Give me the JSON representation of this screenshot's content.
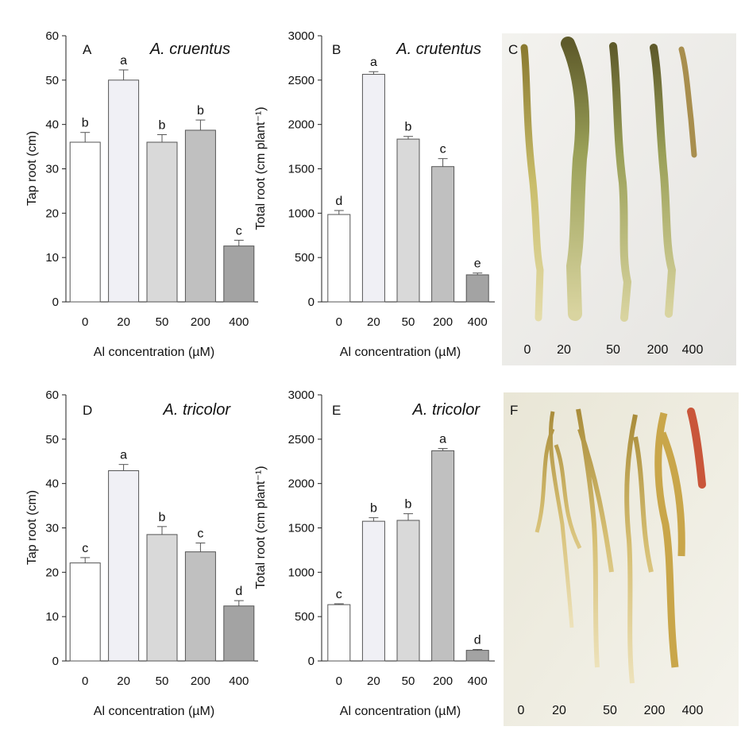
{
  "chart_data": [
    {
      "type": "bar",
      "panel": "A",
      "species": "A. cruentus",
      "categories": [
        "0",
        "20",
        "50",
        "200",
        "400"
      ],
      "values": [
        36,
        50,
        36,
        38.7,
        12.6
      ],
      "errors": [
        2.2,
        2.3,
        1.7,
        2.3,
        1.3
      ],
      "letters": [
        "b",
        "a",
        "b",
        "b",
        "c"
      ],
      "colors": [
        "#ffffff",
        "#f0f0f5",
        "#d9d9d9",
        "#c0c0c0",
        "#a3a3a3"
      ],
      "ylabel": "Tap root (cm)",
      "xlabel": "Al concentration (µM)",
      "ylim": [
        0,
        60
      ],
      "yticks": [
        "0",
        "10",
        "20",
        "30",
        "40",
        "50",
        "60"
      ]
    },
    {
      "type": "bar",
      "panel": "B",
      "species": "A. crutentus",
      "categories": [
        "0",
        "20",
        "50",
        "200",
        "400"
      ],
      "values": [
        985,
        2565,
        1835,
        1525,
        305
      ],
      "errors": [
        45,
        30,
        30,
        90,
        20
      ],
      "letters": [
        "d",
        "a",
        "b",
        "c",
        "e"
      ],
      "colors": [
        "#ffffff",
        "#f0f0f5",
        "#d9d9d9",
        "#c0c0c0",
        "#a3a3a3"
      ],
      "ylabel": "Total root (cm plant⁻¹)",
      "xlabel": "Al concentration (µM)",
      "ylim": [
        0,
        3000
      ],
      "yticks": [
        "0",
        "500",
        "1000",
        "1500",
        "2000",
        "2500",
        "3000"
      ]
    },
    {
      "type": "bar",
      "panel": "D",
      "species": "A. tricolor",
      "categories": [
        "0",
        "20",
        "50",
        "200",
        "400"
      ],
      "values": [
        22.1,
        42.9,
        28.5,
        24.6,
        12.4
      ],
      "errors": [
        1.2,
        1.4,
        1.8,
        2.0,
        1.2
      ],
      "letters": [
        "c",
        "a",
        "b",
        "c",
        "d"
      ],
      "colors": [
        "#ffffff",
        "#f0f0f5",
        "#d9d9d9",
        "#c0c0c0",
        "#a3a3a3"
      ],
      "ylabel": "Tap root (cm)",
      "xlabel": "Al concentration (µM)",
      "ylim": [
        0,
        60
      ],
      "yticks": [
        "0",
        "10",
        "20",
        "30",
        "40",
        "50",
        "60"
      ]
    },
    {
      "type": "bar",
      "panel": "E",
      "species": "A. tricolor",
      "categories": [
        "0",
        "20",
        "50",
        "200",
        "400"
      ],
      "values": [
        635,
        1575,
        1585,
        2370,
        120
      ],
      "errors": [
        10,
        40,
        75,
        25,
        10
      ],
      "letters": [
        "c",
        "b",
        "b",
        "a",
        "d"
      ],
      "colors": [
        "#ffffff",
        "#f0f0f5",
        "#d9d9d9",
        "#c0c0c0",
        "#a3a3a3"
      ],
      "ylabel": "Total root (cm plant⁻¹)",
      "xlabel": "Al concentration (µM)",
      "ylim": [
        0,
        3000
      ],
      "yticks": [
        "0",
        "500",
        "1000",
        "1500",
        "2000",
        "2500",
        "3000"
      ]
    }
  ],
  "photos": [
    {
      "panel": "C",
      "labels": [
        "0",
        "20",
        "50",
        "200",
        "400"
      ]
    },
    {
      "panel": "F",
      "labels": [
        "0",
        "20",
        "50",
        "200",
        "400"
      ]
    }
  ]
}
